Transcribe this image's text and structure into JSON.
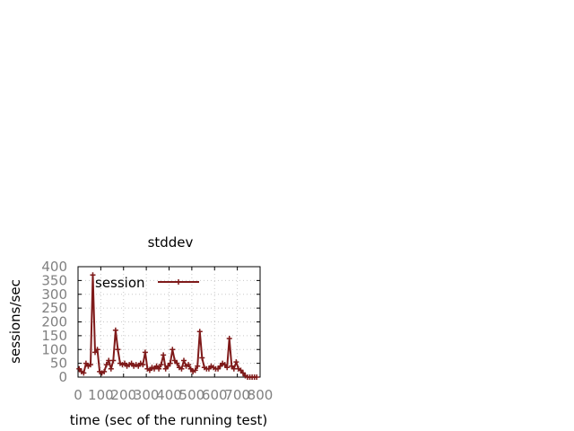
{
  "chart_data": {
    "type": "line",
    "title": "stddev",
    "xlabel": "time (sec of the running test)",
    "ylabel": "sessions/sec",
    "xlim": [
      0,
      800
    ],
    "ylim": [
      0,
      400
    ],
    "xticks": [
      0,
      100,
      200,
      300,
      400,
      500,
      600,
      700,
      800
    ],
    "yticks": [
      0,
      50,
      100,
      150,
      200,
      250,
      300,
      350,
      400
    ],
    "grid": true,
    "legend_position": "top-left",
    "series": [
      {
        "name": "session",
        "color": "#7f1a1a",
        "marker": "plus",
        "x": [
          5,
          15,
          25,
          35,
          45,
          55,
          65,
          75,
          85,
          95,
          105,
          115,
          125,
          135,
          145,
          155,
          165,
          175,
          185,
          195,
          205,
          215,
          225,
          235,
          245,
          255,
          265,
          275,
          285,
          295,
          305,
          315,
          325,
          335,
          345,
          355,
          365,
          375,
          385,
          395,
          405,
          415,
          425,
          435,
          445,
          455,
          465,
          475,
          485,
          495,
          505,
          515,
          525,
          535,
          545,
          555,
          565,
          575,
          585,
          595,
          605,
          615,
          625,
          635,
          645,
          655,
          665,
          675,
          685,
          695,
          705,
          715,
          725,
          735,
          745,
          755,
          765,
          775,
          785
        ],
        "values": [
          30,
          20,
          15,
          50,
          40,
          45,
          370,
          90,
          100,
          20,
          15,
          20,
          45,
          60,
          30,
          60,
          170,
          100,
          50,
          45,
          50,
          40,
          45,
          50,
          40,
          45,
          40,
          50,
          45,
          90,
          30,
          25,
          35,
          30,
          40,
          30,
          45,
          80,
          30,
          40,
          50,
          100,
          60,
          50,
          35,
          30,
          60,
          40,
          45,
          30,
          20,
          25,
          40,
          165,
          70,
          35,
          30,
          30,
          40,
          35,
          30,
          30,
          40,
          50,
          45,
          35,
          140,
          40,
          30,
          55,
          30,
          25,
          15,
          5,
          0,
          0,
          0,
          0,
          0
        ]
      }
    ]
  }
}
